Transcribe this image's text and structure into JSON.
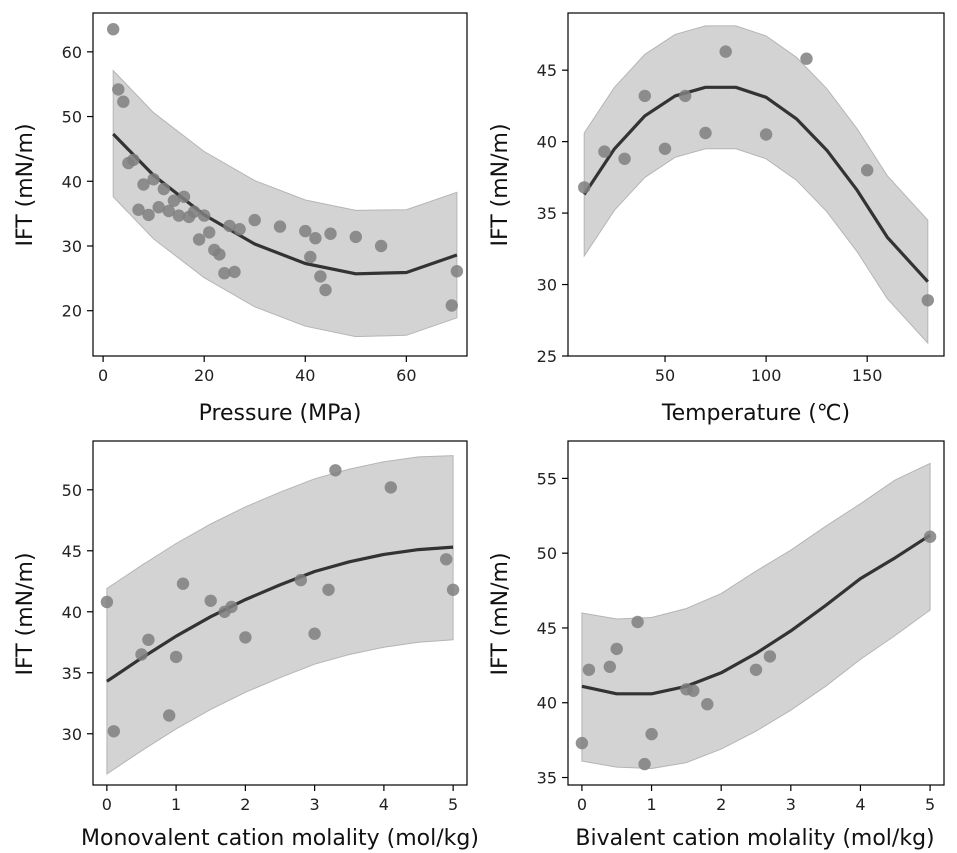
{
  "chart_data": [
    {
      "type": "scatter",
      "xlabel": "Pressure (MPa)",
      "ylabel": "IFT (mN/m)",
      "xlim": [
        -2,
        72
      ],
      "ylim": [
        13,
        66
      ],
      "xticks": [
        0,
        20,
        40,
        60
      ],
      "yticks": [
        20,
        30,
        40,
        50,
        60
      ],
      "grid": false,
      "points": {
        "x": [
          2,
          3,
          4,
          5,
          6,
          7,
          8,
          9,
          10,
          11,
          12,
          13,
          14,
          15,
          16,
          17,
          18,
          19,
          20,
          21,
          22,
          23,
          24,
          25,
          26,
          27,
          30,
          35,
          40,
          41,
          42,
          43,
          44,
          45,
          50,
          55,
          69,
          70
        ],
        "y": [
          63.5,
          54.2,
          52.3,
          42.8,
          43.3,
          35.6,
          39.5,
          34.8,
          40.3,
          36.0,
          38.8,
          35.4,
          37.0,
          34.7,
          37.6,
          34.5,
          35.3,
          31.0,
          34.7,
          32.1,
          29.4,
          28.7,
          25.8,
          33.1,
          26.0,
          32.6,
          34.0,
          33.0,
          32.3,
          28.3,
          31.2,
          25.3,
          23.2,
          31.9,
          31.4,
          30.0,
          20.8,
          26.1
        ]
      },
      "fit": {
        "x": [
          2,
          10,
          20,
          30,
          40,
          50,
          60,
          70
        ],
        "y": [
          47.3,
          40.9,
          34.8,
          30.3,
          27.3,
          25.7,
          25.9,
          28.6
        ]
      },
      "band": {
        "x": [
          2,
          10,
          20,
          30,
          40,
          50,
          60,
          70
        ],
        "upper": [
          57.1,
          50.6,
          44.6,
          40.1,
          37.1,
          35.5,
          35.6,
          38.3
        ],
        "lower": [
          37.6,
          31.1,
          25.1,
          20.6,
          17.6,
          16.0,
          16.2,
          18.9
        ]
      }
    },
    {
      "type": "scatter",
      "xlabel": "Temperature (℃)",
      "ylabel": "IFT (mN/m)",
      "xlim": [
        2,
        188
      ],
      "ylim": [
        25,
        49
      ],
      "xticks": [
        50,
        100,
        150
      ],
      "yticks": [
        25,
        30,
        35,
        40,
        45
      ],
      "grid": false,
      "points": {
        "x": [
          10,
          20,
          30,
          40,
          50,
          60,
          70,
          80,
          100,
          120,
          150,
          180
        ],
        "y": [
          36.8,
          39.3,
          38.8,
          43.2,
          39.5,
          43.2,
          40.6,
          46.3,
          40.5,
          45.8,
          38.0,
          28.9
        ]
      },
      "fit": {
        "x": [
          10,
          25,
          40,
          55,
          70,
          85,
          100,
          115,
          130,
          145,
          160,
          180
        ],
        "y": [
          36.3,
          39.5,
          41.8,
          43.2,
          43.8,
          43.8,
          43.1,
          41.6,
          39.4,
          36.6,
          33.3,
          30.2
        ]
      },
      "band": {
        "x": [
          10,
          25,
          40,
          55,
          70,
          85,
          100,
          115,
          130,
          145,
          160,
          180
        ],
        "upper": [
          40.6,
          43.8,
          46.1,
          47.5,
          48.1,
          48.1,
          47.4,
          45.9,
          43.7,
          40.9,
          37.6,
          34.5
        ],
        "lower": [
          32.0,
          35.2,
          37.5,
          38.9,
          39.5,
          39.5,
          38.8,
          37.3,
          35.1,
          32.3,
          29.0,
          25.9
        ]
      }
    },
    {
      "type": "scatter",
      "xlabel": "Monovalent cation molality (mol/kg)",
      "ylabel": "IFT (mN/m)",
      "xlim": [
        -0.2,
        5.2
      ],
      "ylim": [
        25.8,
        54
      ],
      "xticks": [
        0,
        1,
        2,
        3,
        4,
        5
      ],
      "yticks": [
        30,
        35,
        40,
        45,
        50
      ],
      "grid": false,
      "points": {
        "x": [
          0.0,
          0.1,
          0.5,
          0.6,
          0.9,
          1.0,
          1.1,
          1.5,
          1.7,
          1.8,
          2.0,
          2.8,
          3.0,
          3.2,
          3.3,
          4.1,
          4.9,
          5.0
        ],
        "y": [
          40.8,
          30.2,
          36.5,
          37.7,
          31.5,
          36.3,
          42.3,
          40.9,
          40.0,
          40.4,
          37.9,
          42.6,
          38.2,
          41.8,
          51.6,
          50.2,
          44.3,
          41.8
        ]
      },
      "fit": {
        "x": [
          0,
          0.5,
          1,
          1.5,
          2,
          2.5,
          3,
          3.5,
          4,
          4.5,
          5
        ],
        "y": [
          34.3,
          36.2,
          38.0,
          39.6,
          41.0,
          42.2,
          43.3,
          44.1,
          44.7,
          45.1,
          45.3
        ]
      },
      "band": {
        "x": [
          0,
          0.5,
          1,
          1.5,
          2,
          2.5,
          3,
          3.5,
          4,
          4.5,
          5
        ],
        "upper": [
          41.9,
          43.8,
          45.6,
          47.2,
          48.6,
          49.8,
          50.9,
          51.7,
          52.3,
          52.7,
          52.8
        ],
        "lower": [
          26.7,
          28.6,
          30.4,
          32.0,
          33.4,
          34.6,
          35.7,
          36.5,
          37.1,
          37.5,
          37.7
        ]
      }
    },
    {
      "type": "scatter",
      "xlabel": "Bivalent cation molality (mol/kg)",
      "ylabel": "IFT (mN/m)",
      "xlim": [
        -0.2,
        5.2
      ],
      "ylim": [
        34.5,
        57.5
      ],
      "xticks": [
        0,
        1,
        2,
        3,
        4,
        5
      ],
      "yticks": [
        35,
        40,
        45,
        50,
        55
      ],
      "grid": false,
      "points": {
        "x": [
          0.0,
          0.1,
          0.4,
          0.5,
          0.8,
          0.9,
          1.0,
          1.5,
          1.6,
          1.8,
          2.5,
          2.7,
          5.0
        ],
        "y": [
          37.3,
          42.2,
          42.4,
          43.6,
          45.4,
          35.9,
          37.9,
          40.9,
          40.8,
          39.9,
          42.2,
          43.1,
          51.1
        ]
      },
      "fit": {
        "x": [
          0,
          0.5,
          1,
          1.5,
          2,
          2.5,
          3,
          3.5,
          4,
          4.5,
          5
        ],
        "y": [
          41.1,
          40.6,
          40.6,
          41.1,
          42.0,
          43.3,
          44.8,
          46.5,
          48.3,
          49.7,
          51.2
        ]
      },
      "band": {
        "x": [
          0,
          0.5,
          1,
          1.5,
          2,
          2.5,
          3,
          3.5,
          4,
          4.5,
          5
        ],
        "upper": [
          46.0,
          45.6,
          45.7,
          46.3,
          47.3,
          48.8,
          50.2,
          51.8,
          53.3,
          54.9,
          56.0
        ],
        "lower": [
          36.1,
          35.7,
          35.6,
          36.0,
          36.9,
          38.1,
          39.5,
          41.1,
          42.9,
          44.5,
          46.2
        ]
      }
    }
  ]
}
